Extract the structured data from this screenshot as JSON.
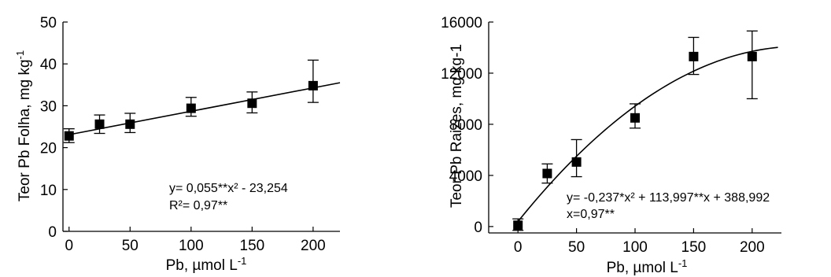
{
  "chart_data": [
    {
      "type": "scatter",
      "ylabel": "Teor Pb Folha, mg kg",
      "ylabel_sup": "-1",
      "xlabel": "Pb, µmol L",
      "xlabel_sup": "-1",
      "xlim": [
        -5,
        222
      ],
      "ylim": [
        0,
        50
      ],
      "xticks": [
        0,
        50,
        100,
        150,
        200
      ],
      "xtick_labels": [
        "0",
        "50",
        "100",
        "150",
        "200"
      ],
      "yticks": [
        0,
        10,
        20,
        30,
        40,
        50
      ],
      "ytick_labels": [
        "0",
        "10",
        "20",
        "30",
        "40",
        "50"
      ],
      "x": [
        0,
        25,
        50,
        100,
        150,
        200
      ],
      "y": [
        22.8,
        25.6,
        25.6,
        29.4,
        30.6,
        34.8
      ],
      "err_low": [
        21.2,
        23.4,
        23.6,
        27.5,
        28.3,
        30.8
      ],
      "err_high": [
        24.5,
        27.8,
        28.2,
        32.0,
        33.3,
        40.9
      ],
      "fit": {
        "kind": "linear",
        "x0": 0,
        "y0": 23.1,
        "x1": 222,
        "y1": 35.5
      },
      "equation": "y= 0,055**x² - 23,254",
      "r2": "R²= 0,97**"
    },
    {
      "type": "scatter",
      "ylabel": "Teor Pb Raizes, mg kg-1",
      "xlabel": "Pb, µmol L",
      "xlabel_sup": "-1",
      "xlim": [
        -25,
        225
      ],
      "ylim": [
        -500,
        16000
      ],
      "xticks": [
        0,
        50,
        100,
        150,
        200
      ],
      "xtick_labels": [
        "0",
        "50",
        "100",
        "150",
        "200"
      ],
      "yticks": [
        0,
        4000,
        8000,
        12000,
        16000
      ],
      "ytick_labels": [
        "0",
        "4000",
        "8000",
        "12000",
        "16000"
      ],
      "x": [
        0,
        25,
        50,
        100,
        150,
        200
      ],
      "y": [
        100,
        4150,
        5050,
        8500,
        13300,
        13300
      ],
      "err_low": [
        -300,
        3400,
        3900,
        7700,
        11900,
        10000
      ],
      "err_high": [
        600,
        4900,
        6800,
        9600,
        14800,
        15300
      ],
      "fit": {
        "kind": "quadratic",
        "a": -0.237,
        "b": 113.997,
        "c": 388.992,
        "x0": 0,
        "x1": 222
      },
      "equation": "y= -0,237*x² + 113,997**x + 388,992",
      "r2": "x=0,97**"
    }
  ]
}
